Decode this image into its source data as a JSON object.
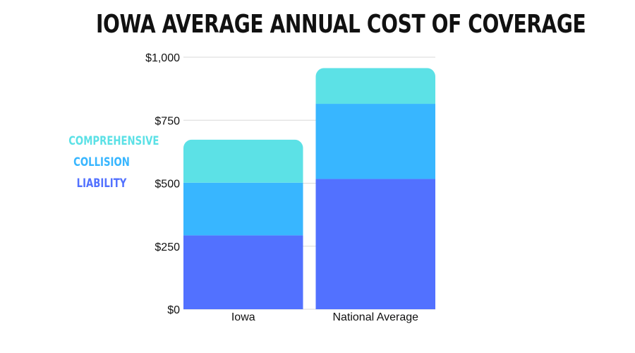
{
  "chart_data": {
    "type": "bar",
    "stacked": true,
    "title": "IOWA AVERAGE ANNUAL COST OF COVERAGE",
    "categories": [
      "Iowa",
      "National Average"
    ],
    "series": [
      {
        "name": "LIABILITY",
        "values": [
          293,
          517
        ],
        "color": "#5271ff"
      },
      {
        "name": "COLLISION",
        "values": [
          209,
          298
        ],
        "color": "#38b6ff"
      },
      {
        "name": "COMPREHENSIVE",
        "values": [
          171,
          142
        ],
        "color": "#5ce1e6"
      }
    ],
    "ylim": [
      0,
      1000
    ],
    "yticks": [
      0,
      250,
      500,
      750,
      1000
    ],
    "ytick_labels": [
      "$0",
      "$250",
      "$500",
      "$750",
      "$1,000"
    ],
    "grid": true,
    "legend_position": "left"
  },
  "legend_order": [
    "COMPREHENSIVE",
    "COLLISION",
    "LIABILITY"
  ]
}
